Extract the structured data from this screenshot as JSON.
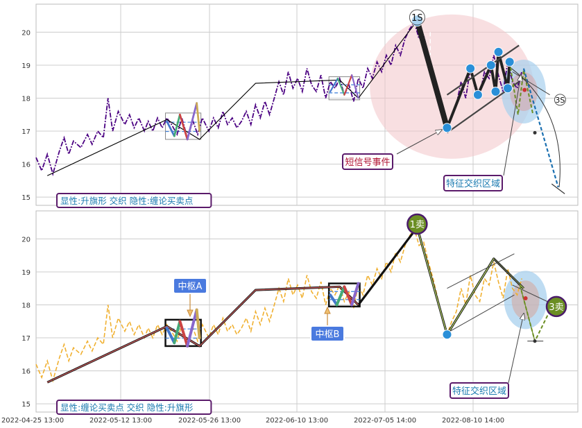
{
  "chart_data": {
    "type": "line",
    "x_tick_labels": [
      "2022-04-25 13:00",
      "2022-05-12 13:00",
      "2022-05-26 13:00",
      "2022-06-10 13:00",
      "2022-07-05 14:00",
      "2022-08-10 14:00"
    ],
    "y_ticks": [
      15,
      16,
      17,
      18,
      19,
      20
    ],
    "ylim": [
      14.75,
      20.85
    ],
    "grid": true,
    "colors": {
      "grid": "#cccccc",
      "frame": "#bbbbbb",
      "price_top": "#4b0082",
      "price_bottom": "#f0b030",
      "stroke": "#111111",
      "accent_blue": "#2a8fd8",
      "zone_pink": "#f2c4c8",
      "zone_blue": "#a8d0ee",
      "label_box": "#4a7adf",
      "sell_marker": "#6b8e23"
    },
    "panels": [
      {
        "id": "top",
        "price_style": "dash-dot",
        "annotation_text": "显性:升旗形 交织 隐性:缠论买卖点",
        "labels": {
          "sell1": "1S",
          "sell3": "3S",
          "event": "短信号事件",
          "zone": "特征交织区域"
        }
      },
      {
        "id": "bottom",
        "price_style": "dashed",
        "annotation_text": "显性:缠论买卖点 交织 隐性:升旗形",
        "labels": {
          "sell1": "1卖",
          "sell3": "3卖",
          "pivot_a": "中枢A",
          "pivot_b": "中枢B",
          "zone": "特征交织区域"
        }
      }
    ],
    "price_series": [
      [
        0,
        16.2
      ],
      [
        0.6,
        15.8
      ],
      [
        1.2,
        16.3
      ],
      [
        1.8,
        15.7
      ],
      [
        2.5,
        16.4
      ],
      [
        3,
        16.8
      ],
      [
        3.5,
        16.3
      ],
      [
        4,
        16.7
      ],
      [
        4.8,
        16.5
      ],
      [
        5.5,
        16.9
      ],
      [
        6,
        16.6
      ],
      [
        6.6,
        17.0
      ],
      [
        7.2,
        16.8
      ],
      [
        7.7,
        18.0
      ],
      [
        8.2,
        17.0
      ],
      [
        8.8,
        17.6
      ],
      [
        9.5,
        17.2
      ],
      [
        10,
        17.5
      ],
      [
        10.5,
        17.1
      ],
      [
        11,
        17.4
      ],
      [
        11.6,
        17.0
      ],
      [
        12,
        17.3
      ],
      [
        12.5,
        17.0
      ],
      [
        13,
        17.4
      ],
      [
        13.5,
        17.1
      ],
      [
        14,
        17.4
      ],
      [
        14.5,
        17.2
      ],
      [
        15.1,
        16.9
      ],
      [
        15.6,
        17.4
      ],
      [
        16.2,
        16.8
      ],
      [
        16.8,
        17.3
      ],
      [
        17.3,
        16.9
      ],
      [
        17.8,
        17.4
      ],
      [
        18.5,
        17.0
      ],
      [
        19,
        17.4
      ],
      [
        19.5,
        17.1
      ],
      [
        20,
        17.6
      ],
      [
        20.5,
        17.2
      ],
      [
        21,
        17.4
      ],
      [
        21.5,
        17.1
      ],
      [
        22,
        17.3
      ],
      [
        22.5,
        17.6
      ],
      [
        23,
        17.2
      ],
      [
        23.5,
        17.8
      ],
      [
        24,
        17.4
      ],
      [
        24.5,
        17.9
      ],
      [
        25,
        17.5
      ],
      [
        25.5,
        18.0
      ],
      [
        26,
        18.5
      ],
      [
        26.5,
        18.1
      ],
      [
        27,
        18.8
      ],
      [
        27.5,
        18.3
      ],
      [
        28,
        18.6
      ],
      [
        28.5,
        18.2
      ],
      [
        29,
        18.9
      ],
      [
        29.5,
        18.4
      ],
      [
        30,
        18.2
      ],
      [
        30.5,
        18.7
      ],
      [
        31,
        18.0
      ],
      [
        31.5,
        18.5
      ],
      [
        32,
        18.3
      ],
      [
        32.5,
        18.6
      ],
      [
        33,
        18.1
      ],
      [
        33.5,
        18.4
      ],
      [
        34,
        17.9
      ],
      [
        34.5,
        18.6
      ],
      [
        35,
        18.3
      ],
      [
        35.5,
        18.9
      ],
      [
        36,
        18.6
      ],
      [
        36.5,
        19.1
      ],
      [
        37,
        18.8
      ],
      [
        37.5,
        19.3
      ],
      [
        38,
        19.0
      ],
      [
        38.5,
        19.6
      ],
      [
        39,
        19.3
      ],
      [
        39.5,
        19.8
      ],
      [
        40,
        20.1
      ],
      [
        40.5,
        20.3
      ],
      [
        41,
        19.8
      ],
      [
        41.5,
        19.9
      ],
      [
        42,
        19.3
      ],
      [
        42.5,
        18.8
      ],
      [
        43,
        18.2
      ],
      [
        43.5,
        17.6
      ],
      [
        44,
        17.1
      ],
      [
        44.5,
        17.5
      ],
      [
        45,
        17.8
      ],
      [
        45.5,
        18.5
      ],
      [
        46,
        18.0
      ],
      [
        46.5,
        18.9
      ],
      [
        47,
        18.3
      ],
      [
        47.5,
        18.1
      ],
      [
        48,
        18.8
      ],
      [
        48.5,
        18.6
      ],
      [
        49,
        19.3
      ],
      [
        49.5,
        18.7
      ],
      [
        50,
        18.2
      ],
      [
        50.5,
        19.1
      ],
      [
        51,
        18.5
      ],
      [
        51.5,
        18.3
      ],
      [
        52,
        18.8
      ]
    ],
    "pen_series": [
      [
        1.2,
        15.65
      ],
      [
        14,
        17.35
      ],
      [
        17.5,
        16.75
      ],
      [
        23.5,
        18.45
      ],
      [
        32.5,
        18.55
      ],
      [
        34.5,
        18.0
      ],
      [
        40.8,
        20.35
      ],
      [
        44,
        17.1
      ],
      [
        49,
        19.4
      ],
      [
        52.2,
        18.5
      ],
      [
        54.5,
        17.0
      ]
    ],
    "pivot_a": {
      "x": [
        14,
        17.5
      ],
      "y": [
        16.75,
        17.55
      ]
    },
    "pivot_b": {
      "x": [
        31.5,
        34.5
      ],
      "y": [
        17.95,
        18.65
      ]
    },
    "dots_top": [
      [
        40.8,
        20.35
      ],
      [
        44,
        17.1
      ],
      [
        46.5,
        18.9
      ],
      [
        47.3,
        18.1
      ],
      [
        48.7,
        19.0
      ],
      [
        49.2,
        18.2
      ],
      [
        49.5,
        19.4
      ],
      [
        50.5,
        18.3
      ],
      [
        50.7,
        19.1
      ]
    ],
    "dots_bottom": [
      [
        40.8,
        20.35
      ],
      [
        44,
        17.1
      ]
    ]
  }
}
